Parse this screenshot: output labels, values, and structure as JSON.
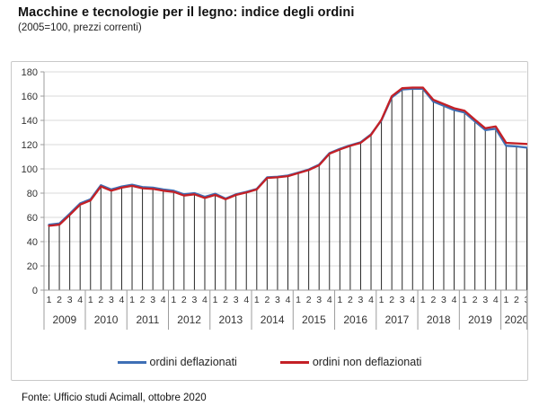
{
  "page": {
    "title": "Macchine e tecnologie per il legno: indice degli ordini",
    "subtitle": "(2005=100, prezzi correnti)",
    "source": "Fonte: Ufficio studi Acimall, ottobre 2020"
  },
  "chart_data": {
    "type": "line",
    "title": "Macchine e tecnologie per il legno: indice degli ordini",
    "subtitle": "(2005=100, prezzi correnti)",
    "ylim": [
      0,
      180
    ],
    "yticks": [
      0,
      20,
      40,
      60,
      80,
      100,
      120,
      140,
      160,
      180
    ],
    "grid": "horizontal",
    "drop_lines": true,
    "legend_position": "bottom",
    "x_axis": {
      "years": [
        {
          "label": "2009",
          "quarters": [
            "1",
            "2",
            "3",
            "4"
          ]
        },
        {
          "label": "2010",
          "quarters": [
            "1",
            "2",
            "3",
            "4"
          ]
        },
        {
          "label": "2011",
          "quarters": [
            "1",
            "2",
            "3",
            "4"
          ]
        },
        {
          "label": "2012",
          "quarters": [
            "1",
            "2",
            "3",
            "4"
          ]
        },
        {
          "label": "2013",
          "quarters": [
            "1",
            "2",
            "3",
            "4"
          ]
        },
        {
          "label": "2014",
          "quarters": [
            "1",
            "2",
            "3",
            "4"
          ]
        },
        {
          "label": "2015",
          "quarters": [
            "1",
            "2",
            "3",
            "4"
          ]
        },
        {
          "label": "2016",
          "quarters": [
            "1",
            "2",
            "3",
            "4"
          ]
        },
        {
          "label": "2017",
          "quarters": [
            "1",
            "2",
            "3",
            "4"
          ]
        },
        {
          "label": "2018",
          "quarters": [
            "1",
            "2",
            "3",
            "4"
          ]
        },
        {
          "label": "2019",
          "quarters": [
            "1",
            "2",
            "3",
            "4"
          ]
        },
        {
          "label": "2020",
          "quarters": [
            "1",
            "2",
            "3"
          ]
        }
      ]
    },
    "series": [
      {
        "name": "ordini deflazionati",
        "color": "#3E6FB5",
        "values": [
          54,
          55,
          63,
          71.5,
          75,
          86.5,
          83,
          85.5,
          87,
          85,
          84.5,
          83,
          82,
          79,
          80,
          77,
          79.5,
          75.5,
          79,
          81,
          83.5,
          93,
          93.5,
          94.5,
          97,
          99.5,
          103.5,
          113,
          116.5,
          119.5,
          122,
          128.5,
          140,
          159,
          165.5,
          166,
          166,
          155.5,
          152,
          148.5,
          146.5,
          139,
          132,
          133,
          119,
          118.5,
          117.5
        ]
      },
      {
        "name": "ordini non deflazionati",
        "color": "#C42026",
        "values": [
          53,
          54,
          62,
          70.5,
          74,
          85.5,
          82,
          84.5,
          86,
          84,
          83.5,
          82,
          81,
          78,
          79,
          76,
          78.5,
          75,
          78.5,
          80.5,
          83,
          92.5,
          93,
          94,
          96.5,
          99,
          103,
          112.5,
          116,
          119,
          121.5,
          128,
          140.5,
          160,
          166.5,
          167,
          167,
          157,
          153.5,
          150,
          148,
          140.5,
          133.5,
          135,
          121.5,
          121,
          120.5
        ]
      }
    ],
    "colors": {
      "gridline": "#d9d9d9",
      "axis": "#9c9c9c",
      "drop_line": "#262626",
      "tick_text": "#333333"
    }
  }
}
